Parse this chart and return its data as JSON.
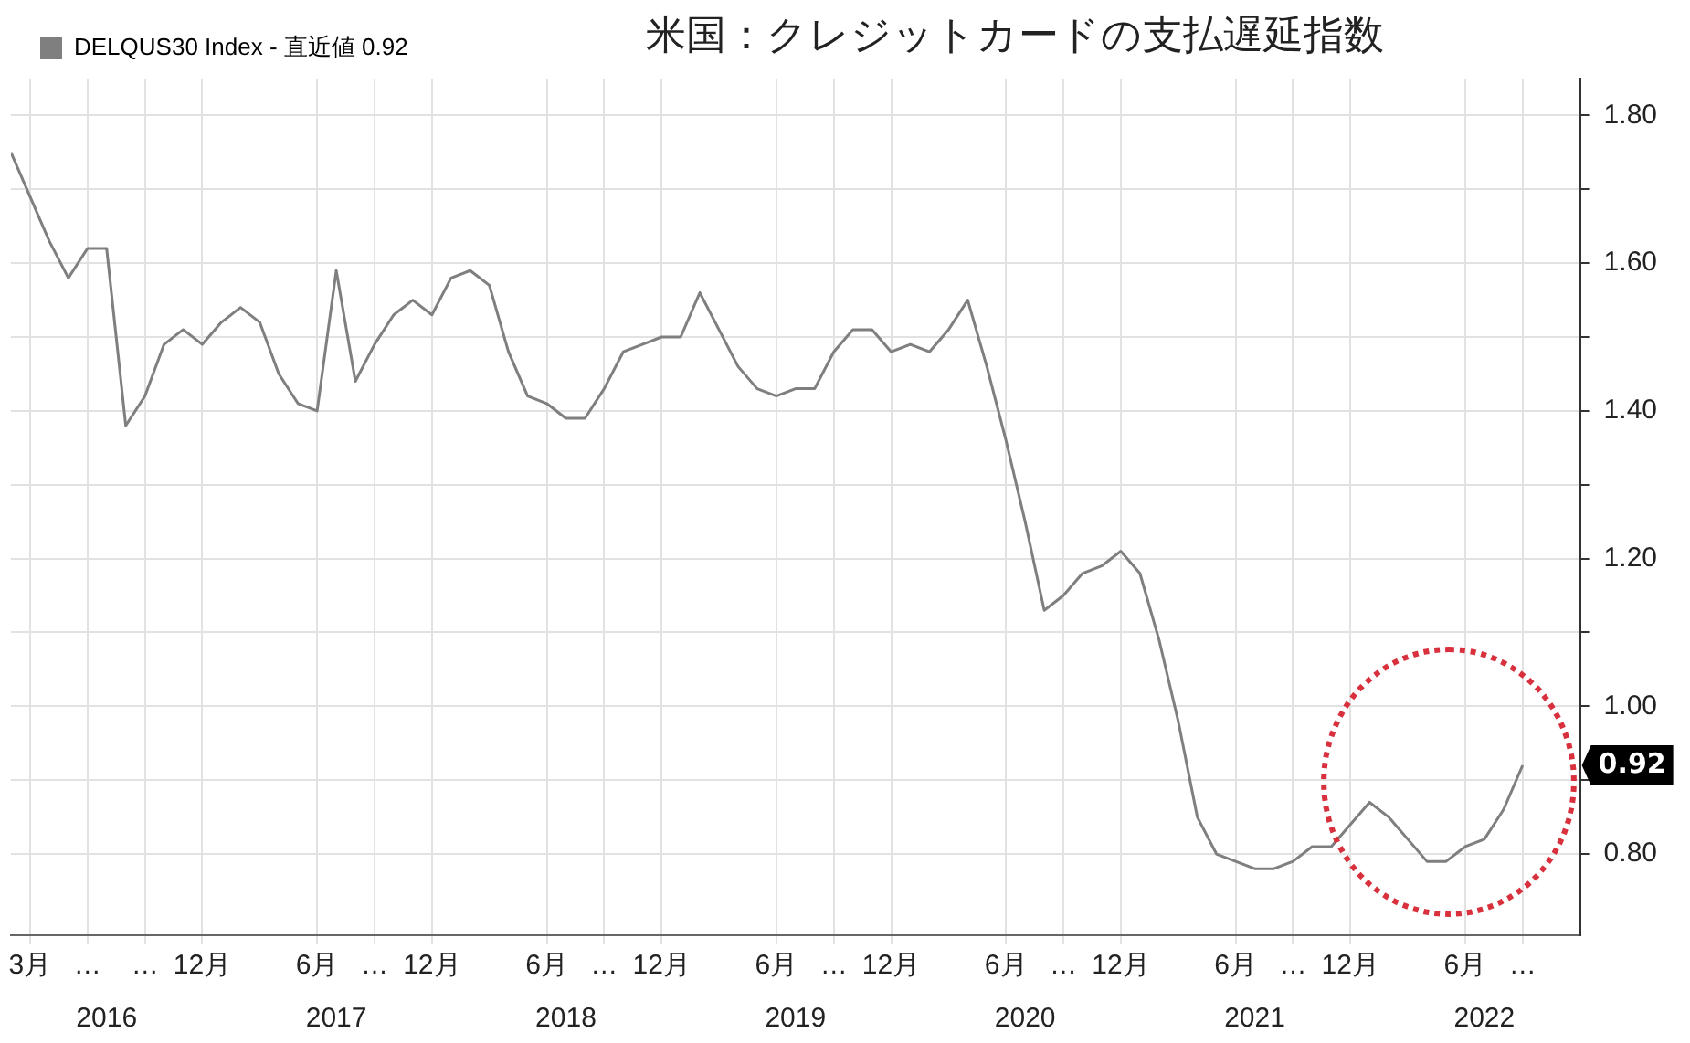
{
  "chart_data": {
    "type": "line",
    "title": "米国：クレジットカードの支払遅延指数",
    "x": [
      "2016-02",
      "2016-03",
      "2016-04",
      "2016-05",
      "2016-06",
      "2016-07",
      "2016-08",
      "2016-09",
      "2016-10",
      "2016-11",
      "2016-12",
      "2017-01",
      "2017-02",
      "2017-03",
      "2017-04",
      "2017-05",
      "2017-06",
      "2017-07",
      "2017-08",
      "2017-09",
      "2017-10",
      "2017-11",
      "2017-12",
      "2018-01",
      "2018-02",
      "2018-03",
      "2018-04",
      "2018-05",
      "2018-06",
      "2018-07",
      "2018-08",
      "2018-09",
      "2018-10",
      "2018-11",
      "2018-12",
      "2019-01",
      "2019-02",
      "2019-03",
      "2019-04",
      "2019-05",
      "2019-06",
      "2019-07",
      "2019-08",
      "2019-09",
      "2019-10",
      "2019-11",
      "2019-12",
      "2020-01",
      "2020-02",
      "2020-03",
      "2020-04",
      "2020-05",
      "2020-06",
      "2020-07",
      "2020-08",
      "2020-09",
      "2020-10",
      "2020-11",
      "2020-12",
      "2021-01",
      "2021-02",
      "2021-03",
      "2021-04",
      "2021-05",
      "2021-06",
      "2021-07",
      "2021-08",
      "2021-09",
      "2021-10",
      "2021-11",
      "2021-12",
      "2022-01",
      "2022-02",
      "2022-03",
      "2022-04",
      "2022-05",
      "2022-06",
      "2022-07",
      "2022-08",
      "2022-09"
    ],
    "series": [
      {
        "name": "DELQUS30 Index - 直近値 0.92",
        "color": "#7f7f7f",
        "values": [
          1.75,
          1.69,
          1.63,
          1.58,
          1.62,
          1.62,
          1.38,
          1.42,
          1.49,
          1.51,
          1.49,
          1.52,
          1.54,
          1.52,
          1.45,
          1.41,
          1.4,
          1.59,
          1.44,
          1.49,
          1.53,
          1.55,
          1.53,
          1.58,
          1.59,
          1.57,
          1.48,
          1.42,
          1.41,
          1.39,
          1.39,
          1.43,
          1.48,
          1.49,
          1.5,
          1.5,
          1.56,
          1.51,
          1.46,
          1.43,
          1.42,
          1.43,
          1.43,
          1.48,
          1.51,
          1.51,
          1.48,
          1.49,
          1.48,
          1.51,
          1.55,
          1.46,
          1.36,
          1.25,
          1.13,
          1.15,
          1.18,
          1.19,
          1.21,
          1.18,
          1.09,
          0.98,
          0.85,
          0.8,
          0.79,
          0.78,
          0.78,
          0.79,
          0.81,
          0.81,
          0.84,
          0.87,
          0.85,
          0.82,
          0.79,
          0.79,
          0.81,
          0.82,
          0.86,
          0.92
        ]
      }
    ],
    "xlim": [
      "2016-02",
      "2022-12"
    ],
    "xticks": [
      {
        "value": "2016-03",
        "label": "3月"
      },
      {
        "value": "2016-06",
        "label": "…"
      },
      {
        "value": "2016-09",
        "label": "…"
      },
      {
        "value": "2016-12",
        "label": "12月"
      },
      {
        "value": "2017-06",
        "label": "6月"
      },
      {
        "value": "2017-09",
        "label": "…"
      },
      {
        "value": "2017-12",
        "label": "12月"
      },
      {
        "value": "2018-06",
        "label": "6月"
      },
      {
        "value": "2018-09",
        "label": "…"
      },
      {
        "value": "2018-12",
        "label": "12月"
      },
      {
        "value": "2019-06",
        "label": "6月"
      },
      {
        "value": "2019-09",
        "label": "…"
      },
      {
        "value": "2019-12",
        "label": "12月"
      },
      {
        "value": "2020-06",
        "label": "6月"
      },
      {
        "value": "2020-09",
        "label": "…"
      },
      {
        "value": "2020-12",
        "label": "12月"
      },
      {
        "value": "2021-06",
        "label": "6月"
      },
      {
        "value": "2021-09",
        "label": "…"
      },
      {
        "value": "2021-12",
        "label": "12月"
      },
      {
        "value": "2022-06",
        "label": "6月"
      },
      {
        "value": "2022-09",
        "label": "…"
      }
    ],
    "x2lim": [
      "2016-02",
      "2022-12"
    ],
    "x2ticks": [
      {
        "value": "2016-07",
        "label": "2016"
      },
      {
        "value": "2017-07",
        "label": "2017"
      },
      {
        "value": "2018-07",
        "label": "2018"
      },
      {
        "value": "2019-07",
        "label": "2019"
      },
      {
        "value": "2020-07",
        "label": "2020"
      },
      {
        "value": "2021-07",
        "label": "2021"
      },
      {
        "value": "2022-07",
        "label": "2022"
      }
    ],
    "ylim": [
      0.69,
      1.85
    ],
    "yticks": [
      {
        "value": 0.8,
        "label": "0.80"
      },
      {
        "value": 0.9,
        "label": null
      },
      {
        "value": 1.0,
        "label": "1.00"
      },
      {
        "value": 1.1,
        "label": null
      },
      {
        "value": 1.2,
        "label": "1.20"
      },
      {
        "value": 1.3,
        "label": null
      },
      {
        "value": 1.4,
        "label": "1.40"
      },
      {
        "value": 1.5,
        "label": null
      },
      {
        "value": 1.6,
        "label": "1.60"
      },
      {
        "value": 1.7,
        "label": null
      },
      {
        "value": 1.8,
        "label": "1.80"
      }
    ],
    "annotations": [
      {
        "text": "0.92",
        "x": "2022-09",
        "y": 0.92
      }
    ],
    "grid": true,
    "legend": "top left",
    "marker": "none",
    "line_style": "solid"
  }
}
